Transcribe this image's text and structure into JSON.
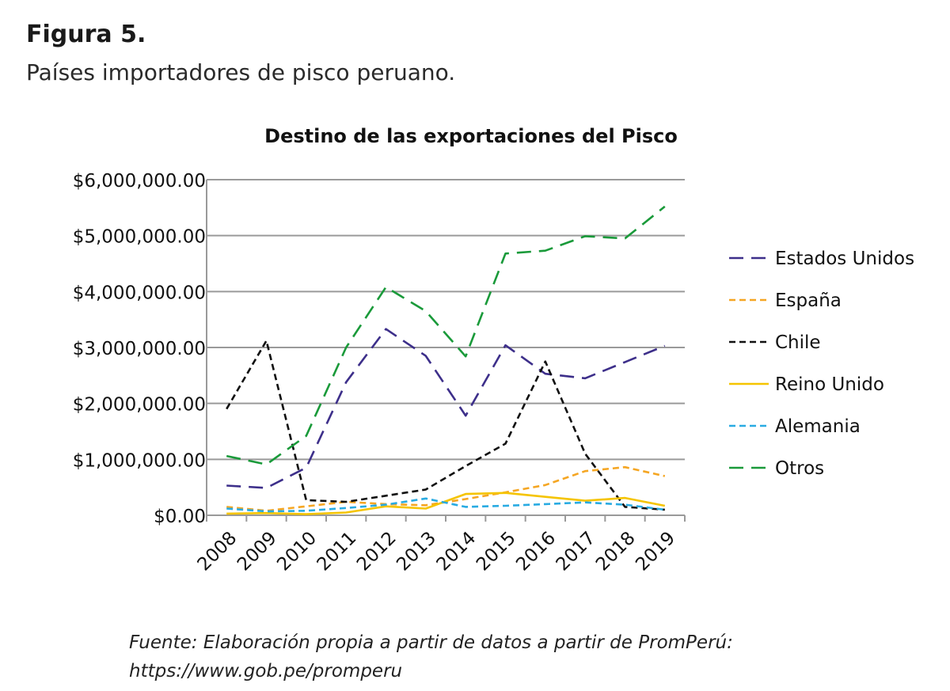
{
  "figure": {
    "label": "Figura 5.",
    "caption": "Países importadores de pisco peruano.",
    "source_line1": "Fuente: Elaboración propia a partir de datos a partir de PromPerú:",
    "source_line2": "https://www.gob.pe/promperu"
  },
  "chart_data": {
    "type": "line",
    "title": "Destino de las exportaciones del Pisco",
    "xlabel": "",
    "ylabel": "",
    "categories": [
      "2008",
      "2009",
      "2010",
      "2011",
      "2012",
      "2013",
      "2014",
      "2015",
      "2016",
      "2017",
      "2018",
      "2019"
    ],
    "ylim": [
      0,
      6000000
    ],
    "yticks": [
      0,
      1000000,
      2000000,
      3000000,
      4000000,
      5000000,
      6000000
    ],
    "ytick_labels": [
      "$0.00",
      "$1,000,000.00",
      "$2,000,000.00",
      "$3,000,000.00",
      "$4,000,000.00",
      "$5,000,000.00",
      "$6,000,000.00"
    ],
    "grid": true,
    "legend_position": "right",
    "series": [
      {
        "name": "Estados Unidos",
        "color": "#3d2f8a",
        "dash": "long-dash",
        "values": [
          530000,
          490000,
          850000,
          2380000,
          3330000,
          2850000,
          1780000,
          3040000,
          2530000,
          2450000,
          2740000,
          3030000
        ]
      },
      {
        "name": "España",
        "color": "#f5a623",
        "dash": "short-dash",
        "values": [
          150000,
          80000,
          160000,
          240000,
          200000,
          180000,
          290000,
          410000,
          540000,
          790000,
          860000,
          700000
        ]
      },
      {
        "name": "Chile",
        "color": "#111111",
        "dash": "short-dash",
        "values": [
          1900000,
          3120000,
          270000,
          240000,
          350000,
          460000,
          880000,
          1280000,
          2750000,
          1100000,
          150000,
          100000
        ]
      },
      {
        "name": "Reino Unido",
        "color": "#f5c400",
        "dash": "solid",
        "values": [
          30000,
          40000,
          20000,
          50000,
          160000,
          120000,
          380000,
          400000,
          330000,
          260000,
          310000,
          170000
        ]
      },
      {
        "name": "Alemania",
        "color": "#29abe2",
        "dash": "short-dash",
        "values": [
          120000,
          70000,
          80000,
          130000,
          190000,
          300000,
          150000,
          170000,
          200000,
          230000,
          190000,
          100000
        ]
      },
      {
        "name": "Otros",
        "color": "#1a9a3a",
        "dash": "long-dash",
        "values": [
          1060000,
          910000,
          1420000,
          3000000,
          4080000,
          3650000,
          2840000,
          4680000,
          4730000,
          4990000,
          4950000,
          5520000
        ]
      }
    ]
  }
}
